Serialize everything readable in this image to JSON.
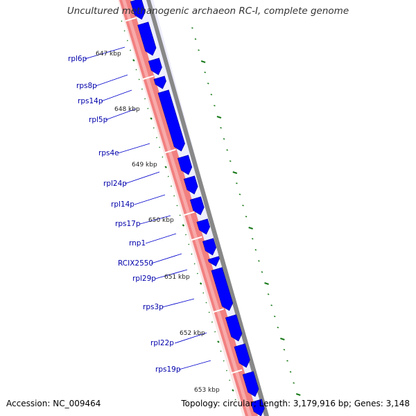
{
  "title": "Uncultured methanogenic archaeon RC-I, complete genome",
  "footer": {
    "accession": "Accession: NC_009464",
    "summary": "Topology: circular; Length: 3,179,916 bp; Genes: 3,148"
  },
  "colors": {
    "gene_fill": "#0000ff",
    "gene_label": "#0000aa",
    "backbone_red": "#f28080",
    "backbone_dark": "#888888",
    "tick_green": "#1a7a1a",
    "kbp_label": "#222222"
  },
  "kbp_markers": [
    "647 kbp",
    "648 kbp",
    "649 kbp",
    "650 kbp",
    "651 kbp",
    "652 kbp",
    "653 kbp"
  ],
  "genes": [
    "rpl6p",
    "rps8p",
    "rps14p",
    "rpl5p",
    "rps4e",
    "rpl24p",
    "rpl14p",
    "rps17p",
    "rnp1",
    "RCIX2550",
    "rpl29p",
    "rps3p",
    "rpl22p",
    "rps19p"
  ]
}
